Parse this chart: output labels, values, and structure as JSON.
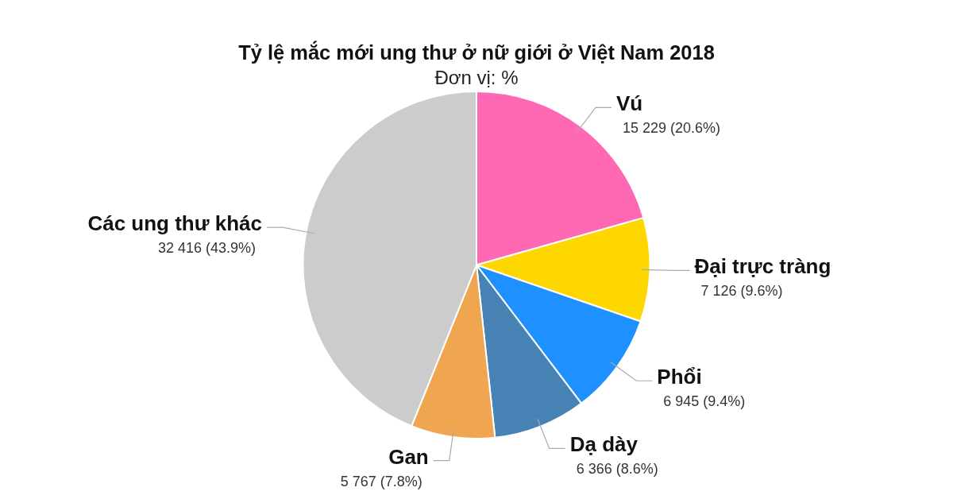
{
  "chart_data": {
    "type": "pie",
    "title": "Tỷ lệ mắc mới ung thư ở nữ giới ở Việt Nam 2018",
    "subtitle": "Đơn vị: %",
    "categories": [
      "Vú",
      "Đại trực tràng",
      "Phổi",
      "Dạ dày",
      "Gan",
      "Các ung thư khác"
    ],
    "values": [
      15229,
      7126,
      6945,
      6366,
      5767,
      32416
    ],
    "value_labels": [
      "15 229 (20.6%)",
      "7 126 (9.6%)",
      "6 945 (9.4%)",
      "6 366 (8.6%)",
      "5 767 (7.8%)",
      "32 416 (43.9%)"
    ],
    "colors": [
      "#ff69b4",
      "#ffd700",
      "#1e90ff",
      "#4682b4",
      "#f0a550",
      "#cccccc"
    ],
    "legend": false
  }
}
